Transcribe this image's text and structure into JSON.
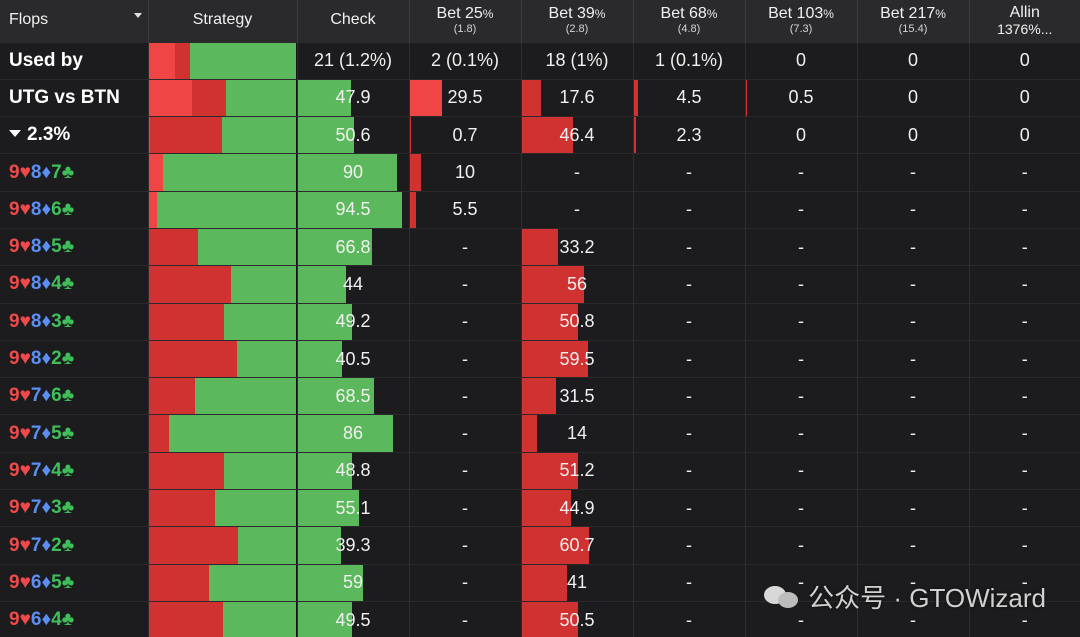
{
  "header": {
    "flops": "Flops",
    "strategy": "Strategy",
    "check": "Check",
    "actions": [
      {
        "name": "Bet 25",
        "pct": "%",
        "sub": "(1.8)"
      },
      {
        "name": "Bet 39",
        "pct": "%",
        "sub": "(2.8)"
      },
      {
        "name": "Bet 68",
        "pct": "%",
        "sub": "(4.8)"
      },
      {
        "name": "Bet 103",
        "pct": "%",
        "sub": "(7.3)"
      },
      {
        "name": "Bet 217",
        "pct": "%",
        "sub": "(15.4)"
      },
      {
        "name": "Allin",
        "pct": "",
        "sub": "1376%..."
      }
    ]
  },
  "summary_rows": [
    {
      "label": "Used by",
      "check": "21 (1.2%)",
      "b25": "2 (0.1%)",
      "b39": "18 (1%)",
      "b68": "1 (0.1%)",
      "b103": "0",
      "b217": "0",
      "allin": "0"
    },
    {
      "label": "UTG vs BTN",
      "check": "47.9",
      "b25": "29.5",
      "b39": "17.6",
      "b68": "4.5",
      "b103": "0.5",
      "b217": "0",
      "allin": "0"
    },
    {
      "label": "2.3%",
      "check": "50.6",
      "b25": "0.7",
      "b39": "46.4",
      "b68": "2.3",
      "b103": "0",
      "b217": "0",
      "allin": "0"
    }
  ],
  "flop_rows": [
    {
      "cards": [
        [
          "9",
          "♥"
        ],
        [
          "8",
          "♦"
        ],
        [
          "7",
          "♣"
        ]
      ],
      "check": "90",
      "b25": "10",
      "b39": "-",
      "b68": "-",
      "b103": "-",
      "b217": "-",
      "allin": "-"
    },
    {
      "cards": [
        [
          "9",
          "♥"
        ],
        [
          "8",
          "♦"
        ],
        [
          "6",
          "♣"
        ]
      ],
      "check": "94.5",
      "b25": "5.5",
      "b39": "-",
      "b68": "-",
      "b103": "-",
      "b217": "-",
      "allin": "-"
    },
    {
      "cards": [
        [
          "9",
          "♥"
        ],
        [
          "8",
          "♦"
        ],
        [
          "5",
          "♣"
        ]
      ],
      "check": "66.8",
      "b25": "-",
      "b39": "33.2",
      "b68": "-",
      "b103": "-",
      "b217": "-",
      "allin": "-"
    },
    {
      "cards": [
        [
          "9",
          "♥"
        ],
        [
          "8",
          "♦"
        ],
        [
          "4",
          "♣"
        ]
      ],
      "check": "44",
      "b25": "-",
      "b39": "56",
      "b68": "-",
      "b103": "-",
      "b217": "-",
      "allin": "-"
    },
    {
      "cards": [
        [
          "9",
          "♥"
        ],
        [
          "8",
          "♦"
        ],
        [
          "3",
          "♣"
        ]
      ],
      "check": "49.2",
      "b25": "-",
      "b39": "50.8",
      "b68": "-",
      "b103": "-",
      "b217": "-",
      "allin": "-"
    },
    {
      "cards": [
        [
          "9",
          "♥"
        ],
        [
          "8",
          "♦"
        ],
        [
          "2",
          "♣"
        ]
      ],
      "check": "40.5",
      "b25": "-",
      "b39": "59.5",
      "b68": "-",
      "b103": "-",
      "b217": "-",
      "allin": "-"
    },
    {
      "cards": [
        [
          "9",
          "♥"
        ],
        [
          "7",
          "♦"
        ],
        [
          "6",
          "♣"
        ]
      ],
      "check": "68.5",
      "b25": "-",
      "b39": "31.5",
      "b68": "-",
      "b103": "-",
      "b217": "-",
      "allin": "-"
    },
    {
      "cards": [
        [
          "9",
          "♥"
        ],
        [
          "7",
          "♦"
        ],
        [
          "5",
          "♣"
        ]
      ],
      "check": "86",
      "b25": "-",
      "b39": "14",
      "b68": "-",
      "b103": "-",
      "b217": "-",
      "allin": "-"
    },
    {
      "cards": [
        [
          "9",
          "♥"
        ],
        [
          "7",
          "♦"
        ],
        [
          "4",
          "♣"
        ]
      ],
      "check": "48.8",
      "b25": "-",
      "b39": "51.2",
      "b68": "-",
      "b103": "-",
      "b217": "-",
      "allin": "-"
    },
    {
      "cards": [
        [
          "9",
          "♥"
        ],
        [
          "7",
          "♦"
        ],
        [
          "3",
          "♣"
        ]
      ],
      "check": "55.1",
      "b25": "-",
      "b39": "44.9",
      "b68": "-",
      "b103": "-",
      "b217": "-",
      "allin": "-"
    },
    {
      "cards": [
        [
          "9",
          "♥"
        ],
        [
          "7",
          "♦"
        ],
        [
          "2",
          "♣"
        ]
      ],
      "check": "39.3",
      "b25": "-",
      "b39": "60.7",
      "b68": "-",
      "b103": "-",
      "b217": "-",
      "allin": "-"
    },
    {
      "cards": [
        [
          "9",
          "♥"
        ],
        [
          "6",
          "♦"
        ],
        [
          "5",
          "♣"
        ]
      ],
      "check": "59",
      "b25": "-",
      "b39": "41",
      "b68": "-",
      "b103": "-",
      "b217": "-",
      "allin": "-"
    },
    {
      "cards": [
        [
          "9",
          "♥"
        ],
        [
          "6",
          "♦"
        ],
        [
          "4",
          "♣"
        ]
      ],
      "check": "49.5",
      "b25": "-",
      "b39": "50.5",
      "b68": "-",
      "b103": "-",
      "b217": "-",
      "allin": "-"
    }
  ],
  "colors": {
    "check_green": "#5cb85c",
    "bet_red": "#d03232",
    "bet_red_light": "#f04545",
    "heart": "#ee4a4a",
    "diamond": "#5b8ff3",
    "club": "#3fbf5a"
  },
  "watermark": {
    "text": "公众号 · GTOWizard",
    "icon": "wechat-icon"
  }
}
